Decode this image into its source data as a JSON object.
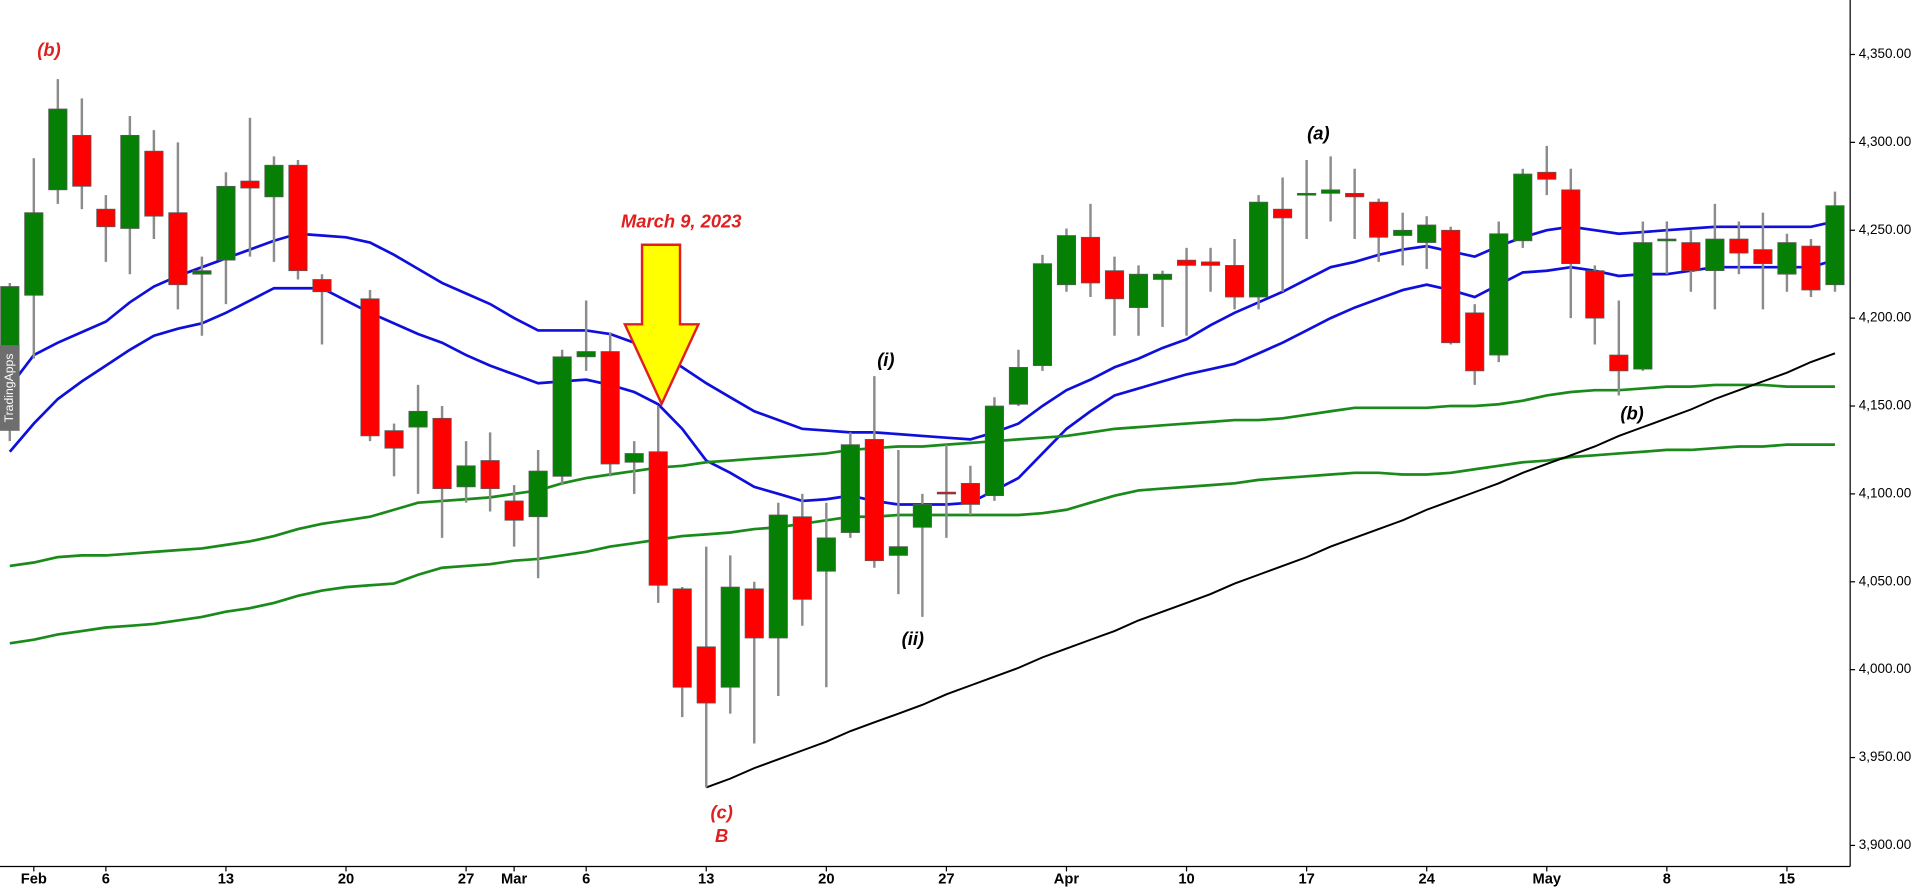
{
  "chart_data": {
    "type": "candlestick",
    "categories": [
      null,
      "Feb",
      null,
      null,
      "6",
      null,
      null,
      null,
      null,
      "13",
      null,
      null,
      null,
      null,
      "20",
      null,
      null,
      null,
      null,
      "27",
      null,
      "Mar",
      null,
      null,
      "6",
      null,
      null,
      null,
      null,
      "13",
      null,
      null,
      null,
      null,
      "20",
      null,
      null,
      null,
      null,
      "27",
      null,
      null,
      null,
      null,
      "Apr",
      null,
      null,
      null,
      null,
      "10",
      null,
      null,
      null,
      null,
      "17",
      null,
      null,
      null,
      null,
      "24",
      null,
      null,
      null,
      null,
      "May",
      null,
      null,
      null,
      null,
      "8",
      null,
      null,
      null,
      null,
      "15",
      null,
      null
    ],
    "open": [
      4140,
      4213,
      4273,
      4304,
      4262,
      4251,
      4295,
      4260,
      4225,
      4233,
      4278,
      4269,
      4287,
      4222,
      null,
      4211,
      4136,
      4138,
      4143,
      4104,
      4119,
      4096,
      4087,
      4110,
      4178,
      4181,
      4118,
      4124,
      4046,
      4013,
      3990,
      4046,
      4018,
      4087,
      4056,
      4078,
      4131,
      4065,
      4081,
      4101,
      4106,
      4099,
      4151,
      4173,
      4219,
      4246,
      4227,
      4206,
      4222,
      4233,
      4232,
      4230,
      4212,
      4262,
      4270,
      4271,
      4271,
      4266,
      4247,
      4243,
      4250,
      4203,
      4179,
      4244,
      4283,
      4273,
      4227,
      4179,
      4171,
      4244,
      4243,
      4227,
      4245,
      4239,
      4225,
      4241,
      4219
    ],
    "high": [
      4220,
      4291,
      4336,
      4325,
      4270,
      4315,
      4307,
      4300,
      4235,
      4283,
      4314,
      4292,
      4290,
      4225,
      null,
      4216,
      4140,
      4162,
      4150,
      4130,
      4135,
      4105,
      4125,
      4182,
      4210,
      4192,
      4130,
      4150,
      4047,
      4070,
      4065,
      4050,
      4095,
      4100,
      4095,
      4135,
      4167,
      4125,
      4100,
      4128,
      4116,
      4155,
      4182,
      4236,
      4251,
      4265,
      4235,
      4230,
      4227,
      4240,
      4240,
      4245,
      4270,
      4280,
      4290,
      4292,
      4285,
      4268,
      4260,
      4258,
      4252,
      4208,
      4255,
      4285,
      4298,
      4285,
      4230,
      4210,
      4255,
      4255,
      4250,
      4265,
      4255,
      4260,
      4248,
      4245,
      4272
    ],
    "low": [
      4130,
      4177,
      4265,
      4262,
      4232,
      4225,
      4245,
      4205,
      4190,
      4208,
      4235,
      4232,
      4222,
      4185,
      null,
      4130,
      4110,
      4100,
      4075,
      4095,
      4090,
      4070,
      4052,
      4105,
      4170,
      4110,
      4100,
      4038,
      3973,
      3933,
      3975,
      3958,
      3985,
      4025,
      3990,
      4075,
      4058,
      4043,
      4030,
      4075,
      4088,
      4096,
      4150,
      4170,
      4215,
      4212,
      4190,
      4190,
      4195,
      4190,
      4215,
      4205,
      4205,
      4215,
      4245,
      4255,
      4245,
      4232,
      4230,
      4228,
      4185,
      4162,
      4175,
      4240,
      4270,
      4200,
      4185,
      4156,
      4170,
      4225,
      4215,
      4205,
      4225,
      4205,
      4215,
      4212,
      4215
    ],
    "close": [
      4218,
      4260,
      4319,
      4275,
      4252,
      4304,
      4258,
      4219,
      4227,
      4275,
      4274,
      4287,
      4227,
      4215,
      null,
      4133,
      4126,
      4147,
      4103,
      4116,
      4103,
      4085,
      4113,
      4178,
      4181,
      4117,
      4123,
      4048,
      3990,
      3981,
      4047,
      4018,
      4088,
      4040,
      4075,
      4128,
      4062,
      4070,
      4094,
      4100,
      4094,
      4150,
      4172,
      4231,
      4247,
      4220,
      4211,
      4225,
      4225,
      4230,
      4230,
      4212,
      4266,
      4257,
      4271,
      4273,
      4269,
      4246,
      4250,
      4253,
      4186,
      4170,
      4248,
      4282,
      4279,
      4231,
      4200,
      4170,
      4243,
      4245,
      4227,
      4245,
      4237,
      4231,
      4243,
      4216,
      4264
    ],
    "up_color": "#058005",
    "down_color": "#ff0000",
    "wick_color": "#8c8c8c",
    "series": [
      {
        "color": "#0f0fdc",
        "values": [
          4161,
          4179,
          4186,
          4192,
          4198,
          4209,
          4218,
          4224,
          4229,
          4234,
          4239,
          4244,
          4248,
          4247,
          4246,
          4243,
          4236,
          4228,
          4220,
          4214,
          4208,
          4200,
          4193,
          4193,
          4193,
          4191,
          4186,
          4181,
          4172,
          4163,
          4155,
          4147,
          4142,
          4137,
          4136,
          4135,
          4135,
          4134,
          4133,
          4132,
          4131,
          4135,
          4140,
          4150,
          4159,
          4165,
          4172,
          4177,
          4183,
          4188,
          4196,
          4203,
          4209,
          4215,
          4222,
          4229,
          4232,
          4236,
          4239,
          4241,
          4238,
          4235,
          4241,
          4246,
          4250,
          4252,
          4250,
          4248,
          4249,
          4250,
          4251,
          4252,
          4252,
          4252,
          4252,
          4252,
          4255
        ]
      },
      {
        "color": "#0f0fdc",
        "values": [
          4124,
          4140,
          4154,
          4164,
          4173,
          4182,
          4190,
          4194,
          4197,
          4203,
          4210,
          4217,
          4217,
          4217,
          4210,
          4203,
          4197,
          4191,
          4186,
          4179,
          4173,
          4168,
          4163,
          4164,
          4165,
          4162,
          4158,
          4151,
          4137,
          4119,
          4112,
          4104,
          4100,
          4096,
          4097,
          4099,
          4096,
          4094,
          4094,
          4094,
          4095,
          4102,
          4109,
          4123,
          4137,
          4147,
          4156,
          4160,
          4164,
          4168,
          4171,
          4174,
          4180,
          4186,
          4193,
          4200,
          4206,
          4211,
          4216,
          4219,
          4216,
          4212,
          4219,
          4226,
          4227,
          4229,
          4227,
          4224,
          4225,
          4225,
          4227,
          4229,
          4229,
          4229,
          4229,
          4229,
          4233
        ]
      },
      {
        "color": "#1a8a1a",
        "values": [
          4059,
          4061,
          4064,
          4065,
          4065,
          4066,
          4067,
          4068,
          4069,
          4071,
          4073,
          4076,
          4080,
          4083,
          4085,
          4087,
          4091,
          4095,
          4096,
          4097,
          4098,
          4100,
          4102,
          4106,
          4109,
          4111,
          4113,
          4115,
          4116,
          4118,
          4119,
          4120,
          4121,
          4122,
          4123,
          4125,
          4126,
          4127,
          4127,
          4128,
          4129,
          4130,
          4131,
          4132,
          4133,
          4135,
          4137,
          4138,
          4139,
          4140,
          4141,
          4142,
          4142,
          4143,
          4145,
          4147,
          4149,
          4149,
          4149,
          4149,
          4150,
          4150,
          4151,
          4153,
          4156,
          4158,
          4159,
          4159,
          4160,
          4161,
          4161,
          4162,
          4162,
          4162,
          4161,
          4161,
          4161
        ]
      },
      {
        "color": "#1a8a1a",
        "values": [
          4015,
          4017,
          4020,
          4022,
          4024,
          4025,
          4026,
          4028,
          4030,
          4033,
          4035,
          4038,
          4042,
          4045,
          4047,
          4048,
          4049,
          4054,
          4058,
          4059,
          4060,
          4062,
          4063,
          4065,
          4067,
          4070,
          4072,
          4074,
          4076,
          4077,
          4078,
          4080,
          4081,
          4083,
          4085,
          4087,
          4087,
          4088,
          4088,
          4088,
          4088,
          4088,
          4088,
          4089,
          4091,
          4095,
          4099,
          4102,
          4103,
          4104,
          4105,
          4106,
          4108,
          4109,
          4110,
          4111,
          4112,
          4112,
          4111,
          4111,
          4112,
          4114,
          4116,
          4118,
          4119,
          4121,
          4122,
          4123,
          4124,
          4125,
          4125,
          4126,
          4127,
          4127,
          4128,
          4128,
          4128
        ]
      },
      {
        "color": "#000000",
        "values": [
          null,
          null,
          null,
          null,
          null,
          null,
          null,
          null,
          null,
          null,
          null,
          null,
          null,
          null,
          null,
          null,
          null,
          null,
          null,
          null,
          null,
          null,
          null,
          null,
          null,
          null,
          null,
          null,
          null,
          3933,
          3938,
          3944,
          3949,
          3954,
          3959,
          3965,
          3970,
          3975,
          3980,
          3986,
          3991,
          3996,
          4001,
          4007,
          4012,
          4017,
          4022,
          4028,
          4033,
          4038,
          4043,
          4049,
          4054,
          4059,
          4064,
          4070,
          4075,
          4080,
          4085,
          4091,
          4096,
          4101,
          4106,
          4112,
          4117,
          4122,
          4127,
          4133,
          4138,
          4143,
          4148,
          4154,
          4159,
          4164,
          4169,
          4175,
          4180
        ]
      }
    ],
    "ylim": [
      3888,
      4381
    ],
    "yticks": [
      {
        "value": 3900,
        "label": "3,900.00"
      },
      {
        "value": 3950,
        "label": "3,950.00"
      },
      {
        "value": 4000,
        "label": "4,000.00"
      },
      {
        "value": 4050,
        "label": "4,050.00"
      },
      {
        "value": 4100,
        "label": "4,100.00"
      },
      {
        "value": 4150,
        "label": "4,150.00"
      },
      {
        "value": 4200,
        "label": "4,200.00"
      },
      {
        "value": 4250,
        "label": "4,250.00"
      },
      {
        "value": 4300,
        "label": "4,300.00"
      },
      {
        "value": 4350,
        "label": "4,350.00"
      }
    ],
    "annotations": [
      "(b)",
      "March 9, 2023",
      "(i)",
      "(ii)",
      "(a)",
      "(b)",
      "(c)",
      "B"
    ],
    "watermark": "TradingApps"
  }
}
